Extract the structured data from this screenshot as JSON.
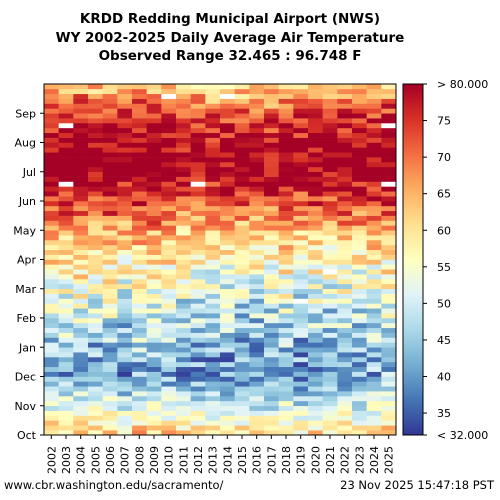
{
  "title_lines": [
    "KRDD Redding Municipal Airport (NWS)",
    "WY 2002-2025 Daily Average Air Temperature",
    "Observed Range 32.465 : 96.748 F"
  ],
  "footer": {
    "source": "www.cbr.washington.edu/sacramento/",
    "timestamp": "23 Nov 2025 15:47:18 PST"
  },
  "chart_data": {
    "type": "heatmap",
    "x_label": "",
    "y_label": "",
    "x_categories": [
      "2002",
      "2003",
      "2004",
      "2005",
      "2006",
      "2007",
      "2008",
      "2009",
      "2010",
      "2011",
      "2012",
      "2013",
      "2014",
      "2015",
      "2016",
      "2017",
      "2018",
      "2019",
      "2020",
      "2021",
      "2022",
      "2023",
      "2024",
      "2025"
    ],
    "y_categories": [
      "Oct",
      "Nov",
      "Dec",
      "Jan",
      "Feb",
      "Mar",
      "Apr",
      "May",
      "Jun",
      "Jul",
      "Aug",
      "Sep"
    ],
    "colorbar": {
      "min": 32,
      "max": 80,
      "tick_labels": [
        "< 32.000",
        "35",
        "40",
        "45",
        "50",
        "55",
        "60",
        "65",
        "70",
        "75",
        "> 80.000"
      ],
      "tick_values": [
        32,
        35,
        40,
        45,
        50,
        55,
        60,
        65,
        70,
        75,
        80
      ]
    },
    "observed_range": [
      32.465,
      96.748
    ],
    "monthly_mean_temperature_F": [
      62,
      50,
      42,
      44,
      48,
      53,
      58,
      65,
      74,
      82,
      80,
      74
    ],
    "missing_data": [
      {
        "year": "2003",
        "month": "Jun"
      },
      {
        "year": "2003",
        "month": "Aug"
      },
      {
        "year": "2010",
        "month": "Sep"
      },
      {
        "year": "2012",
        "month": "Jun"
      },
      {
        "year": "2014",
        "month": "Sep"
      },
      {
        "year": "2019",
        "month": "Feb"
      },
      {
        "year": "2021",
        "month": "Mar"
      },
      {
        "year": "2025",
        "month": "Jun"
      },
      {
        "year": "2025",
        "month": "Aug"
      }
    ]
  }
}
